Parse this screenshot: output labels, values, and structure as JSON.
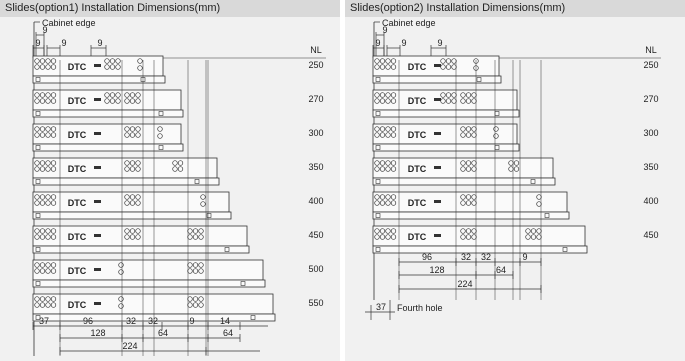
{
  "panels": [
    {
      "id": "option1",
      "title": "Slides(option1)  Installation Dimensions(mm)",
      "cabinet_edge": "Cabinet edge",
      "nl_header": "NL",
      "logo": "DTC",
      "nl_values": [
        "250",
        "270",
        "300",
        "350",
        "400",
        "450",
        "500",
        "550"
      ],
      "top_dims": [
        "9",
        "9",
        "9",
        "9"
      ],
      "bottom_row1": [
        "37",
        "96",
        "32",
        "32",
        "9",
        "14"
      ],
      "bottom_row2": [
        "128",
        "64",
        "64"
      ],
      "bottom_row3": [
        "224"
      ]
    },
    {
      "id": "option2",
      "title": "Slides(option2)  Installation Dimensions(mm)",
      "cabinet_edge": "Cabinet edge",
      "nl_header": "NL",
      "logo": "DTC",
      "nl_values": [
        "250",
        "270",
        "300",
        "350",
        "400",
        "450"
      ],
      "top_dims": [
        "9",
        "9",
        "9",
        "9"
      ],
      "bottom_row1": [
        "96",
        "32",
        "32",
        "9"
      ],
      "bottom_row2": [
        "128",
        "64"
      ],
      "bottom_row3": [
        "224"
      ],
      "fourth_hole_dim": "37",
      "fourth_hole_label": "Fourth hole"
    }
  ],
  "colors": {
    "panel_bg": "#f1f1f1",
    "title_bg": "#d9d9d9",
    "line": "#333333",
    "text": "#222222"
  }
}
